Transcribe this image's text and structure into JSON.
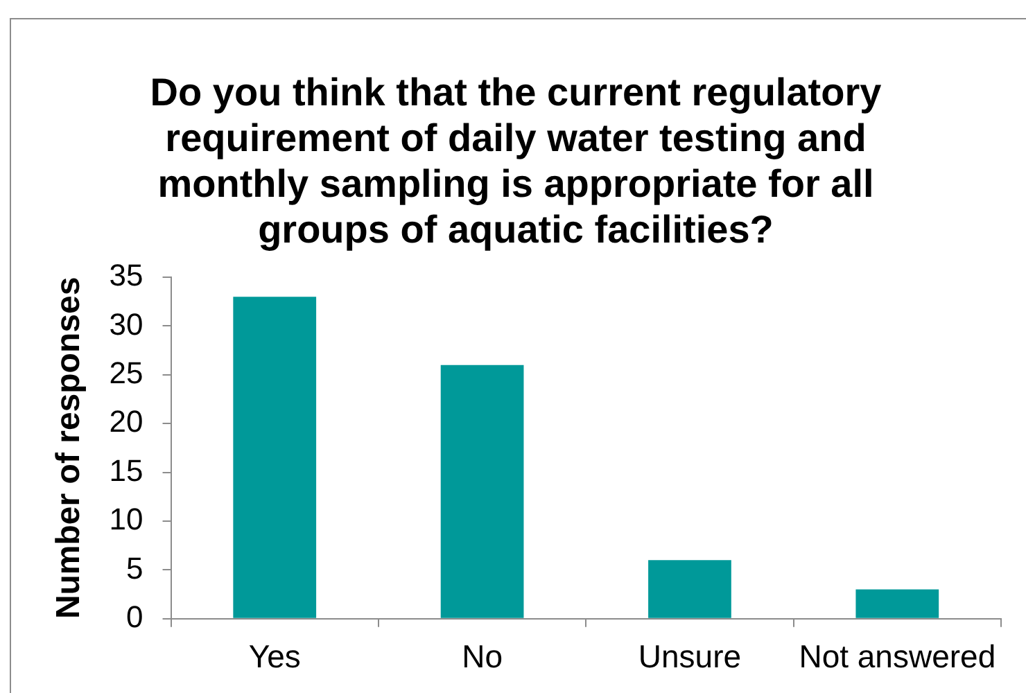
{
  "chart_data": {
    "type": "bar",
    "title": "Do you think that the current regulatory requirement of daily water testing and monthly sampling is appropriate for all groups of aquatic facilities?",
    "ylabel": "Number of responses",
    "categories": [
      "Yes",
      "No",
      "Unsure",
      "Not answered"
    ],
    "values": [
      33,
      26,
      6,
      3
    ],
    "color": "#009999",
    "ylim": [
      0,
      35
    ],
    "yticks": [
      0,
      5,
      10,
      15,
      20,
      25,
      30,
      35
    ],
    "grid": false,
    "legend": false
  }
}
